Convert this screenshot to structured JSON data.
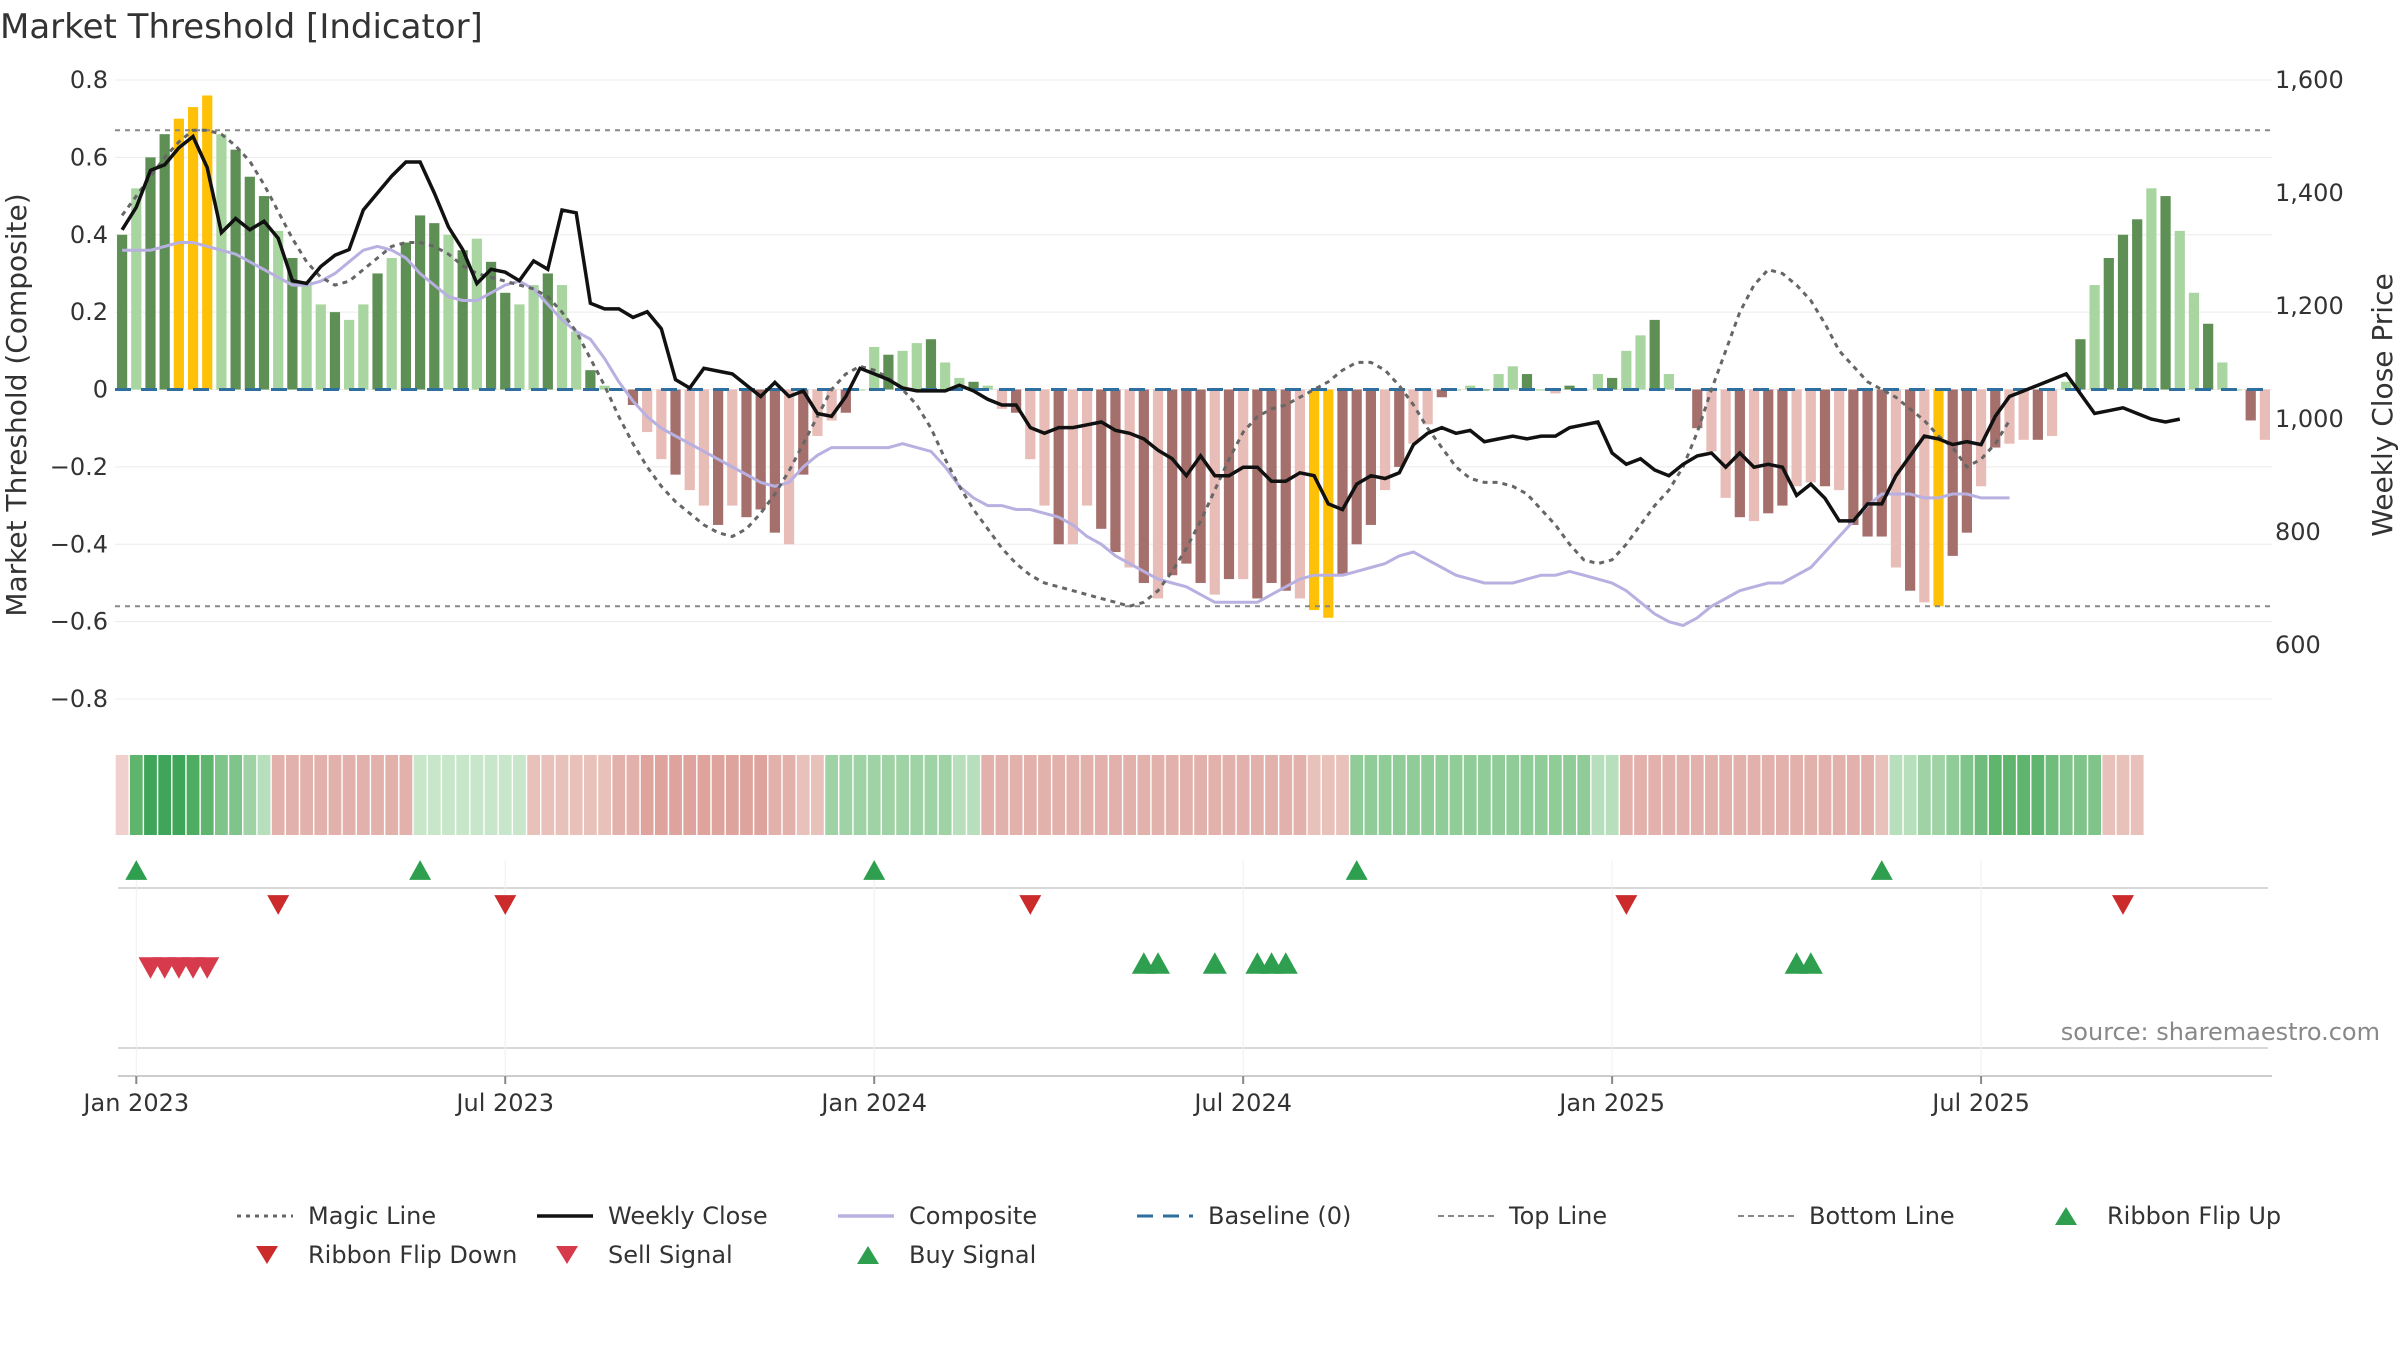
{
  "chart_data": {
    "type": "bar",
    "title": "Market Threshold [Indicator]",
    "ylabel_left": "Market Threshold (Composite)",
    "ylabel_right": "Weekly Close Price",
    "ylim_left": [
      -0.88,
      0.8
    ],
    "ylim_right": [
      450,
      1600
    ],
    "yticks_left": [
      "0.8",
      "0.6",
      "0.4",
      "0.2",
      "0",
      "−0.2",
      "−0.4",
      "−0.6",
      "−0.8"
    ],
    "yticks_left_values": [
      0.8,
      0.6,
      0.4,
      0.2,
      0,
      -0.2,
      -0.4,
      -0.6,
      -0.8
    ],
    "yticks_right": [
      "1,600",
      "1,400",
      "1,200",
      "1,000",
      "800",
      "600"
    ],
    "yticks_right_values": [
      1600,
      1400,
      1200,
      1000,
      800,
      600
    ],
    "xticks": [
      "Jan 2023",
      "Jul 2023",
      "Jan 2024",
      "Jul 2024",
      "Jan 2025",
      "Jul 2025"
    ],
    "xticks_week_index": [
      1,
      27,
      53,
      79,
      105,
      131
    ],
    "top_line": 0.67,
    "bottom_line": -0.56,
    "baseline": 0,
    "source": "source: sharemaestro.com",
    "colors": {
      "pos_strong": "#5e8f55",
      "pos_light": "#a9d5a0",
      "neg_strong": "#a5706c",
      "neg_light": "#e8bcb7",
      "extreme": "#ffc107",
      "close": "#111111",
      "composite": "#b7b0e0",
      "magic": "#666666",
      "baseline": "#2f6f9f",
      "buy": "#2e9e4f",
      "sell": "#d73a4a",
      "flip_down": "#cc2b2b"
    },
    "bars": [
      0.4,
      0.52,
      0.6,
      0.66,
      0.7,
      0.73,
      0.76,
      0.66,
      0.62,
      0.55,
      0.5,
      0.41,
      0.34,
      0.28,
      0.22,
      0.2,
      0.18,
      0.22,
      0.3,
      0.34,
      0.38,
      0.45,
      0.43,
      0.4,
      0.36,
      0.39,
      0.33,
      0.25,
      0.22,
      0.27,
      0.3,
      0.27,
      0.15,
      0.05,
      0.01,
      0,
      -0.04,
      -0.11,
      -0.18,
      -0.22,
      -0.26,
      -0.3,
      -0.35,
      -0.3,
      -0.33,
      -0.31,
      -0.37,
      -0.4,
      -0.22,
      -0.12,
      -0.08,
      -0.06,
      0,
      0.11,
      0.09,
      0.1,
      0.12,
      0.13,
      0.07,
      0.03,
      0.02,
      0.01,
      -0.05,
      -0.06,
      -0.18,
      -0.3,
      -0.4,
      -0.4,
      -0.3,
      -0.36,
      -0.42,
      -0.46,
      -0.5,
      -0.54,
      -0.48,
      -0.45,
      -0.5,
      -0.53,
      -0.49,
      -0.49,
      -0.54,
      -0.5,
      -0.52,
      -0.54,
      -0.57,
      -0.59,
      -0.48,
      -0.4,
      -0.35,
      -0.26,
      -0.2,
      -0.14,
      -0.09,
      -0.02,
      0,
      0.01,
      0,
      0.04,
      0.06,
      0.04,
      0,
      -0.01,
      0.01,
      0,
      0.04,
      0.03,
      0.1,
      0.14,
      0.18,
      0.04,
      0,
      -0.1,
      -0.16,
      -0.28,
      -0.33,
      -0.34,
      -0.32,
      -0.3,
      -0.25,
      -0.24,
      -0.25,
      -0.26,
      -0.35,
      -0.38,
      -0.38,
      -0.46,
      -0.52,
      -0.55,
      -0.56,
      -0.43,
      -0.37,
      -0.25,
      -0.15,
      -0.14,
      -0.13,
      -0.13,
      -0.12,
      0.02,
      0.13,
      0.27,
      0.34,
      0.4,
      0.44,
      0.52,
      0.5,
      0.41,
      0.25,
      0.17,
      0.07,
      0,
      -0.08,
      -0.13
    ],
    "close": [
      1335,
      1375,
      1440,
      1450,
      1480,
      1500,
      1445,
      1330,
      1355,
      1335,
      1350,
      1320,
      1245,
      1240,
      1270,
      1290,
      1300,
      1370,
      1400,
      1430,
      1455,
      1455,
      1400,
      1340,
      1300,
      1240,
      1265,
      1260,
      1245,
      1280,
      1265,
      1370,
      1365,
      1205,
      1195,
      1195,
      1180,
      1190,
      1160,
      1070,
      1055,
      1090,
      1085,
      1080,
      1060,
      1040,
      1065,
      1040,
      1050,
      1010,
      1005,
      1040,
      1090,
      1080,
      1070,
      1055,
      1050,
      1050,
      1050,
      1060,
      1050,
      1035,
      1025,
      1025,
      985,
      975,
      985,
      985,
      990,
      995,
      980,
      975,
      965,
      945,
      930,
      900,
      935,
      900,
      900,
      915,
      915,
      890,
      890,
      905,
      900,
      850,
      840,
      885,
      900,
      895,
      905,
      955,
      975,
      985,
      975,
      980,
      960,
      965,
      970,
      965,
      970,
      970,
      985,
      990,
      995,
      940,
      920,
      930,
      910,
      900,
      920,
      935,
      940,
      915,
      940,
      915,
      920,
      915,
      865,
      885,
      860,
      820,
      820,
      850,
      850,
      900,
      935,
      970,
      965,
      955,
      960,
      955,
      1005,
      1040,
      1050,
      1060,
      1070,
      1080,
      1045,
      1010,
      1015,
      1020,
      1010,
      1000,
      995,
      1000
    ],
    "composite": [
      0.36,
      0.36,
      0.36,
      0.37,
      0.38,
      0.38,
      0.37,
      0.36,
      0.35,
      0.33,
      0.31,
      0.29,
      0.27,
      0.27,
      0.28,
      0.3,
      0.33,
      0.36,
      0.37,
      0.36,
      0.34,
      0.3,
      0.27,
      0.24,
      0.23,
      0.23,
      0.25,
      0.27,
      0.28,
      0.26,
      0.22,
      0.18,
      0.15,
      0.13,
      0.08,
      0.02,
      -0.03,
      -0.07,
      -0.1,
      -0.12,
      -0.14,
      -0.16,
      -0.18,
      -0.2,
      -0.22,
      -0.24,
      -0.25,
      -0.24,
      -0.2,
      -0.17,
      -0.15,
      -0.15,
      -0.15,
      -0.15,
      -0.15,
      -0.14,
      -0.15,
      -0.16,
      -0.2,
      -0.25,
      -0.28,
      -0.3,
      -0.3,
      -0.31,
      -0.31,
      -0.32,
      -0.33,
      -0.35,
      -0.38,
      -0.4,
      -0.43,
      -0.45,
      -0.47,
      -0.49,
      -0.5,
      -0.51,
      -0.53,
      -0.55,
      -0.55,
      -0.55,
      -0.55,
      -0.53,
      -0.51,
      -0.49,
      -0.48,
      -0.48,
      -0.48,
      -0.47,
      -0.46,
      -0.45,
      -0.43,
      -0.42,
      -0.44,
      -0.46,
      -0.48,
      -0.49,
      -0.5,
      -0.5,
      -0.5,
      -0.49,
      -0.48,
      -0.48,
      -0.47,
      -0.48,
      -0.49,
      -0.5,
      -0.52,
      -0.55,
      -0.58,
      -0.6,
      -0.61,
      -0.59,
      -0.56,
      -0.54,
      -0.52,
      -0.51,
      -0.5,
      -0.5,
      -0.48,
      -0.46,
      -0.42,
      -0.38,
      -0.34,
      -0.3,
      -0.27,
      -0.27,
      -0.27,
      -0.28,
      -0.28,
      -0.27,
      -0.27,
      -0.28,
      -0.28,
      -0.28
    ],
    "magic": [
      0.45,
      0.5,
      0.55,
      0.6,
      0.64,
      0.67,
      0.67,
      0.66,
      0.63,
      0.59,
      0.53,
      0.46,
      0.39,
      0.33,
      0.29,
      0.27,
      0.28,
      0.31,
      0.34,
      0.37,
      0.38,
      0.38,
      0.37,
      0.35,
      0.32,
      0.3,
      0.29,
      0.28,
      0.27,
      0.26,
      0.24,
      0.2,
      0.15,
      0.08,
      0.01,
      -0.07,
      -0.14,
      -0.2,
      -0.25,
      -0.29,
      -0.32,
      -0.35,
      -0.37,
      -0.38,
      -0.36,
      -0.32,
      -0.27,
      -0.21,
      -0.14,
      -0.07,
      0,
      0.04,
      0.06,
      0.05,
      0.03,
      0,
      -0.04,
      -0.1,
      -0.18,
      -0.25,
      -0.31,
      -0.36,
      -0.41,
      -0.45,
      -0.48,
      -0.5,
      -0.51,
      -0.52,
      -0.53,
      -0.54,
      -0.55,
      -0.56,
      -0.55,
      -0.52,
      -0.47,
      -0.41,
      -0.34,
      -0.26,
      -0.18,
      -0.11,
      -0.07,
      -0.05,
      -0.04,
      -0.02,
      0,
      0.02,
      0.05,
      0.07,
      0.07,
      0.05,
      0.01,
      -0.04,
      -0.1,
      -0.15,
      -0.2,
      -0.23,
      -0.24,
      -0.24,
      -0.25,
      -0.27,
      -0.31,
      -0.35,
      -0.4,
      -0.44,
      -0.45,
      -0.44,
      -0.4,
      -0.35,
      -0.3,
      -0.26,
      -0.2,
      -0.11,
      0,
      0.1,
      0.2,
      0.27,
      0.31,
      0.3,
      0.27,
      0.23,
      0.17,
      0.1,
      0.06,
      0.02,
      0.0,
      -0.02,
      -0.05,
      -0.08,
      -0.12,
      -0.15,
      -0.2,
      -0.18,
      -0.14,
      -0.08
    ],
    "ribbon_colors": [
      "#f0d0cc",
      "#5fb46e",
      "#3fa55a",
      "#3fa55a",
      "#3fa55a",
      "#4fad62",
      "#5fb46e",
      "#7fc48a",
      "#7fc48a",
      "#9fd3a6",
      "#b8dfbc",
      "#e2b1ab",
      "#e2b1ab",
      "#e2b1ab",
      "#e2b1ab",
      "#e2b1ab",
      "#e2b1ab",
      "#e2b1ab",
      "#e2b1ab",
      "#e2b1ab",
      "#e2b1ab",
      "#c7e6ca",
      "#c7e6ca",
      "#c7e6ca",
      "#c7e6ca",
      "#c7e6ca",
      "#c7e6ca",
      "#c7e6ca",
      "#c7e6ca",
      "#e9c1bb",
      "#e9c1bb",
      "#e9c1bb",
      "#e9c1bb",
      "#e9c1bb",
      "#e9c1bb",
      "#e2b1ab",
      "#e2b1ab",
      "#dea39c",
      "#dea39c",
      "#dea39c",
      "#dea39c",
      "#dea39c",
      "#dea39c",
      "#dea39c",
      "#dea39c",
      "#dea39c",
      "#e2b1ab",
      "#e2b1ab",
      "#e9c1bb",
      "#e9c1bb",
      "#9fd3a6",
      "#9fd3a6",
      "#9fd3a6",
      "#9fd3a6",
      "#9fd3a6",
      "#9fd3a6",
      "#9fd3a6",
      "#9fd3a6",
      "#9fd3a6",
      "#b8dfbc",
      "#b8dfbc",
      "#e2b1ab",
      "#e2b1ab",
      "#e2b1ab",
      "#e2b1ab",
      "#e2b1ab",
      "#e2b1ab",
      "#e2b1ab",
      "#e2b1ab",
      "#e2b1ab",
      "#e2b1ab",
      "#e2b1ab",
      "#e2b1ab",
      "#e2b1ab",
      "#e2b1ab",
      "#e2b1ab",
      "#e2b1ab",
      "#e2b1ab",
      "#e2b1ab",
      "#e2b1ab",
      "#e2b1ab",
      "#e2b1ab",
      "#e2b1ab",
      "#e2b1ab",
      "#e9c1bb",
      "#e9c1bb",
      "#e9c1bb",
      "#8fcc98",
      "#8fcc98",
      "#8fcc98",
      "#8fcc98",
      "#8fcc98",
      "#8fcc98",
      "#8fcc98",
      "#8fcc98",
      "#8fcc98",
      "#8fcc98",
      "#8fcc98",
      "#8fcc98",
      "#8fcc98",
      "#8fcc98",
      "#8fcc98",
      "#8fcc98",
      "#8fcc98",
      "#b8dfbc",
      "#b8dfbc",
      "#e2b1ab",
      "#e2b1ab",
      "#e2b1ab",
      "#e2b1ab",
      "#e2b1ab",
      "#e2b1ab",
      "#e2b1ab",
      "#e2b1ab",
      "#e2b1ab",
      "#e2b1ab",
      "#e2b1ab",
      "#e2b1ab",
      "#e2b1ab",
      "#e2b1ab",
      "#e2b1ab",
      "#e2b1ab",
      "#e2b1ab",
      "#e2b1ab",
      "#e9c1bb",
      "#b8dfbc",
      "#b8dfbc",
      "#9fd3a6",
      "#9fd3a6",
      "#8fcc98",
      "#7fc48a",
      "#6fbc7c",
      "#5fb46e",
      "#5fb46e",
      "#5fb46e",
      "#5fb46e",
      "#6fbc7c",
      "#7fc48a",
      "#7fc48a",
      "#7fc48a",
      "#e9c1bb",
      "#e9c1bb",
      "#e9c1bb"
    ],
    "ribbon_flip_up": [
      1,
      21,
      53,
      87,
      124
    ],
    "ribbon_flip_down": [
      11,
      27,
      64,
      106,
      141
    ],
    "sell_signals": [
      2,
      3,
      4,
      5,
      6
    ],
    "buy_signals": [
      72,
      73,
      77,
      80,
      81,
      82
    ],
    "buy_signals_2": [
      118,
      119
    ],
    "legend": [
      {
        "label": "Magic Line",
        "kind": "dotted",
        "color": "#666666"
      },
      {
        "label": "Weekly Close",
        "kind": "solid",
        "color": "#111111"
      },
      {
        "label": "Composite",
        "kind": "solid",
        "color": "#b7b0e0"
      },
      {
        "label": "Baseline (0)",
        "kind": "dashed",
        "color": "#2f6f9f"
      },
      {
        "label": "Top Line",
        "kind": "dashed-thin",
        "color": "#888888"
      },
      {
        "label": "Bottom Line",
        "kind": "dashed-thin",
        "color": "#888888"
      },
      {
        "label": "Ribbon Flip Up",
        "kind": "tri-up",
        "color": "#2e9e4f"
      },
      {
        "label": "Ribbon Flip Down",
        "kind": "tri-down",
        "color": "#cc2b2b"
      },
      {
        "label": "Sell Signal",
        "kind": "tri-down",
        "color": "#d73a4a"
      },
      {
        "label": "Buy Signal",
        "kind": "tri-up",
        "color": "#2e9e4f"
      }
    ]
  }
}
